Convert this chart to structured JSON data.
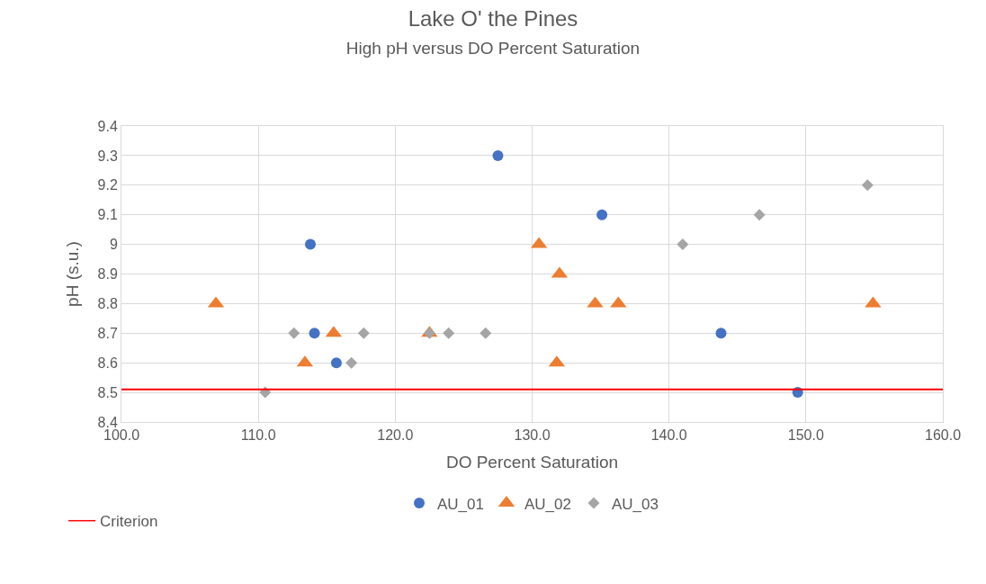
{
  "chart_data": {
    "type": "scatter",
    "title": "Lake O' the Pines",
    "subtitle": "High pH versus DO Percent Saturation",
    "xlabel": "DO Percent Saturation",
    "ylabel": "pH (s.u.)",
    "xlim": [
      100,
      160
    ],
    "xticks": [
      {
        "value": 100,
        "label": "100.0"
      },
      {
        "value": 110,
        "label": "110.0"
      },
      {
        "value": 120,
        "label": "120.0"
      },
      {
        "value": 130,
        "label": "130.0"
      },
      {
        "value": 140,
        "label": "140.0"
      },
      {
        "value": 150,
        "label": "150.0"
      },
      {
        "value": 160,
        "label": "160.0"
      }
    ],
    "ylim": [
      8.4,
      9.4
    ],
    "yticks": [
      8.4,
      8.5,
      8.6,
      8.7,
      8.8,
      8.9,
      9,
      9.1,
      9.2,
      9.3,
      9.4
    ],
    "grid": true,
    "legend": "bottom",
    "series": [
      {
        "name": "AU_01",
        "color": "#4472c4",
        "marker": "circle",
        "x": [
          127.5,
          113.8,
          135.1,
          114.1,
          115.7,
          143.8,
          149.4
        ],
        "values": [
          9.3,
          9.0,
          9.1,
          8.7,
          8.6,
          8.7,
          8.5
        ]
      },
      {
        "name": "AU_02",
        "color": "#ed7d31",
        "marker": "triangle",
        "x": [
          106.9,
          130.5,
          132.0,
          134.6,
          136.3,
          154.9,
          115.5,
          122.5,
          113.4,
          131.8
        ],
        "values": [
          8.8,
          9.0,
          8.9,
          8.8,
          8.8,
          8.8,
          8.7,
          8.7,
          8.6,
          8.6
        ]
      },
      {
        "name": "AU_03",
        "color": "#a5a5a5",
        "marker": "diamond",
        "x": [
          110.5,
          112.6,
          116.8,
          117.7,
          122.5,
          123.9,
          126.6,
          141.0,
          146.6,
          154.5
        ],
        "values": [
          8.5,
          8.7,
          8.6,
          8.7,
          8.7,
          8.7,
          8.7,
          9.0,
          9.1,
          9.2
        ]
      }
    ],
    "ref_lines": [
      {
        "axis": "y",
        "value": 8.51,
        "label": "Criterion",
        "color": "#ff0000",
        "line_style": "solid"
      }
    ]
  }
}
